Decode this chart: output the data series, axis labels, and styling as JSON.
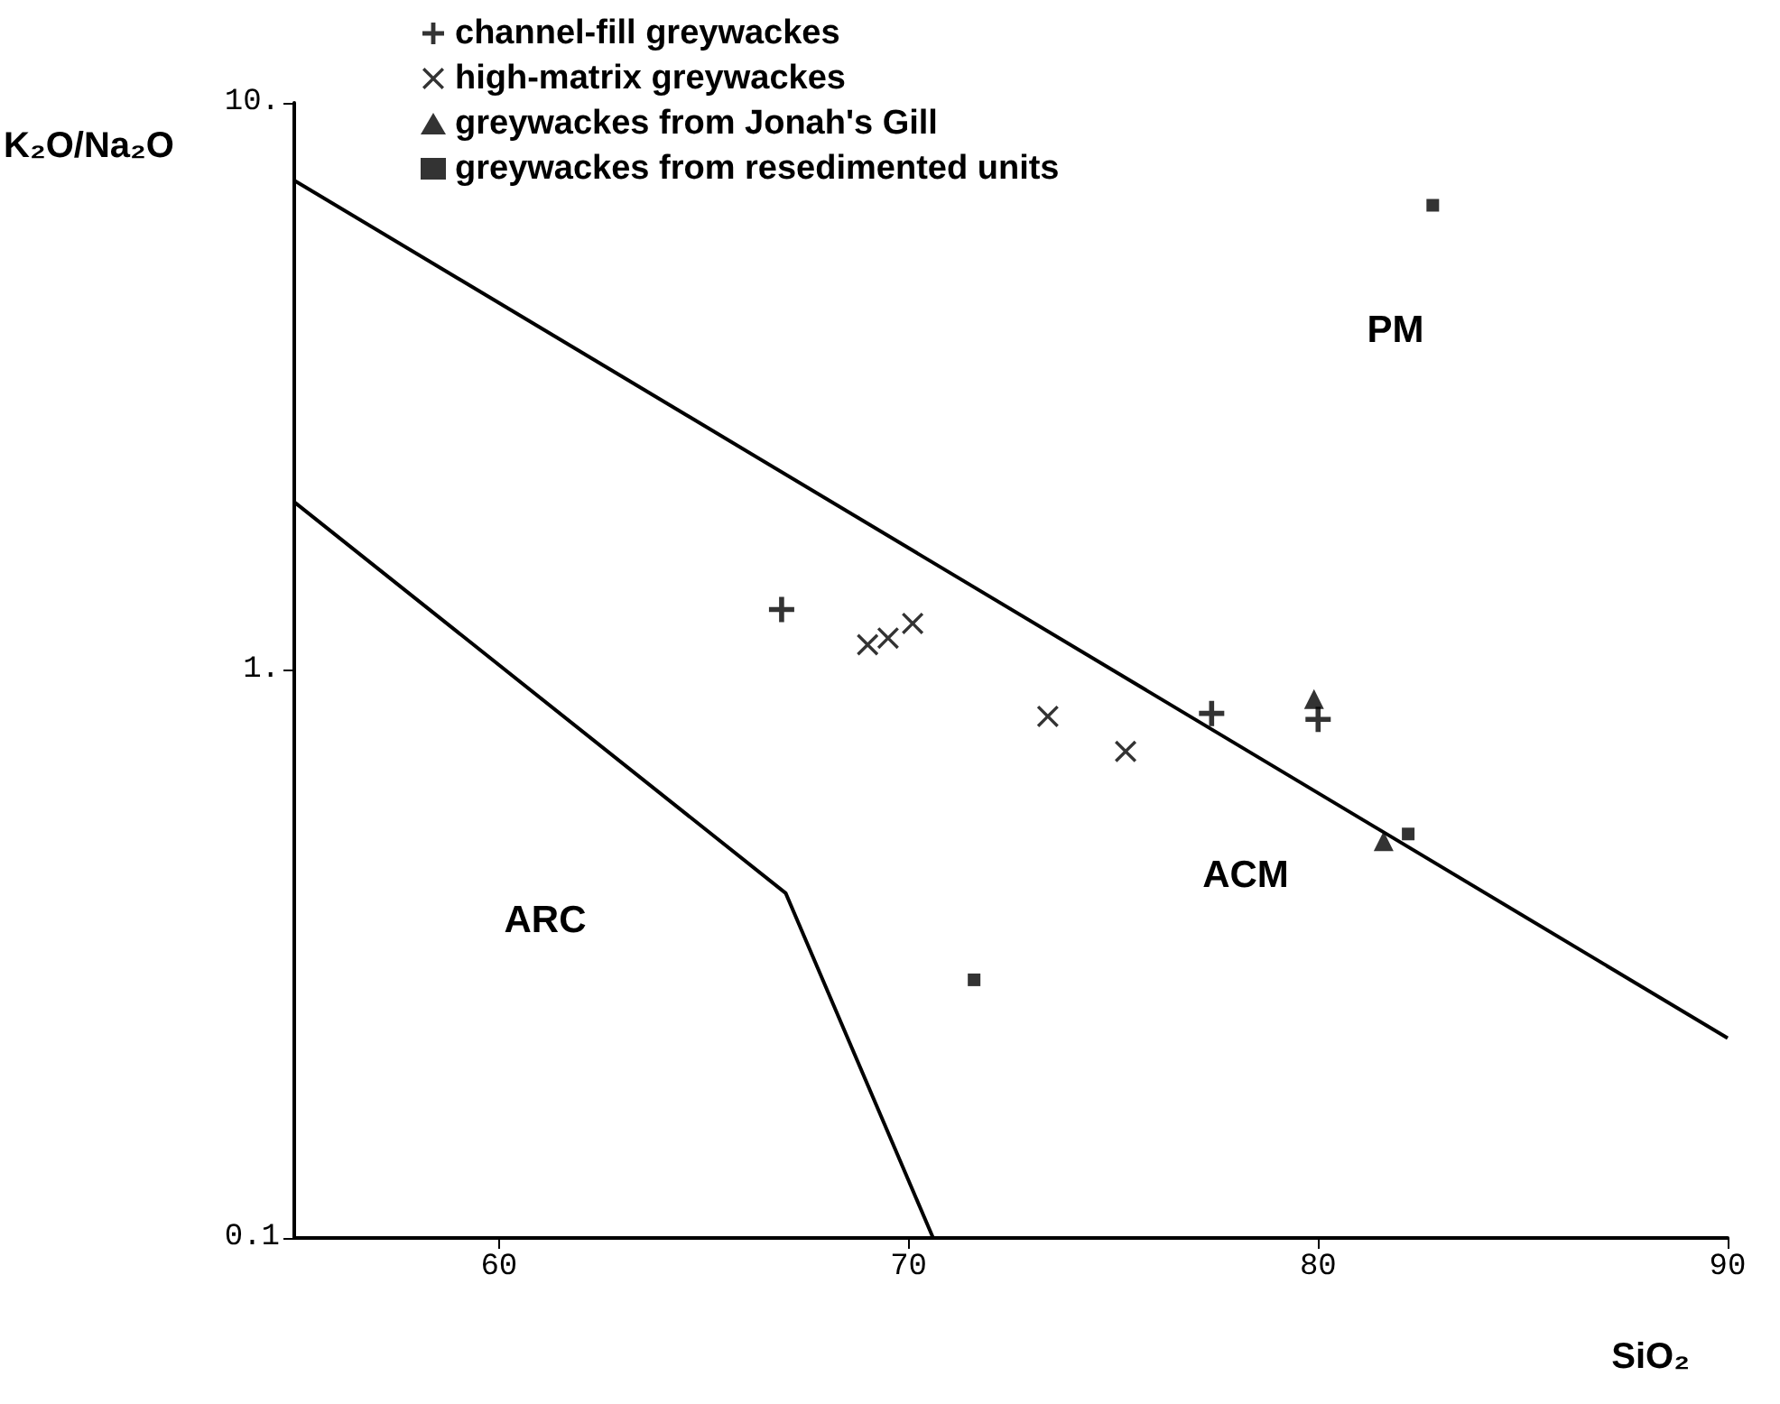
{
  "chart_data": {
    "type": "scatter",
    "xlabel": "SiO₂",
    "ylabel": "K₂O/Na₂O",
    "log": "y",
    "xlim": [
      55,
      90
    ],
    "xticks": [
      60,
      70,
      80,
      90
    ],
    "ylim": [
      0.1,
      10
    ],
    "yticks": [
      {
        "value": 10,
        "label": "10."
      },
      {
        "value": 1,
        "label": "1."
      },
      {
        "value": 0.1,
        "label": "0.1"
      }
    ],
    "grid": false,
    "legend": "top",
    "series": [
      {
        "type": "line",
        "color": "#000000",
        "marker": "none",
        "x": [
          55,
          90
        ],
        "values": [
          7.3,
          0.225
        ]
      },
      {
        "type": "line",
        "color": "#000000",
        "marker": "none",
        "x": [
          55,
          67.0,
          70.6
        ],
        "values": [
          1.98,
          0.405,
          0.1
        ]
      },
      {
        "name": "channel-fill greywackes",
        "color": "#000000",
        "marker": "cross",
        "x": [
          66.9,
          77.4,
          80.0
        ],
        "values": [
          1.28,
          0.84,
          0.82
        ]
      },
      {
        "name": "high-matrix greywackes",
        "color": "#000000",
        "marker": "x",
        "x": [
          69.0,
          69.5,
          70.1,
          73.4,
          75.3
        ],
        "values": [
          1.11,
          1.14,
          1.21,
          0.83,
          0.72
        ]
      },
      {
        "name": "greywackes from Jonah's Gill",
        "color": "#000000",
        "marker": "triangle",
        "x": [
          79.9,
          81.6
        ],
        "values": [
          0.89,
          0.5
        ]
      },
      {
        "name": "greywackes from resedimented units",
        "color": "#000000",
        "marker": "square",
        "x": [
          82.2,
          71.6,
          82.8
        ],
        "values": [
          0.515,
          0.285,
          6.6
        ]
      }
    ],
    "annotations": [
      "PM",
      "ACM",
      "ARC"
    ]
  }
}
